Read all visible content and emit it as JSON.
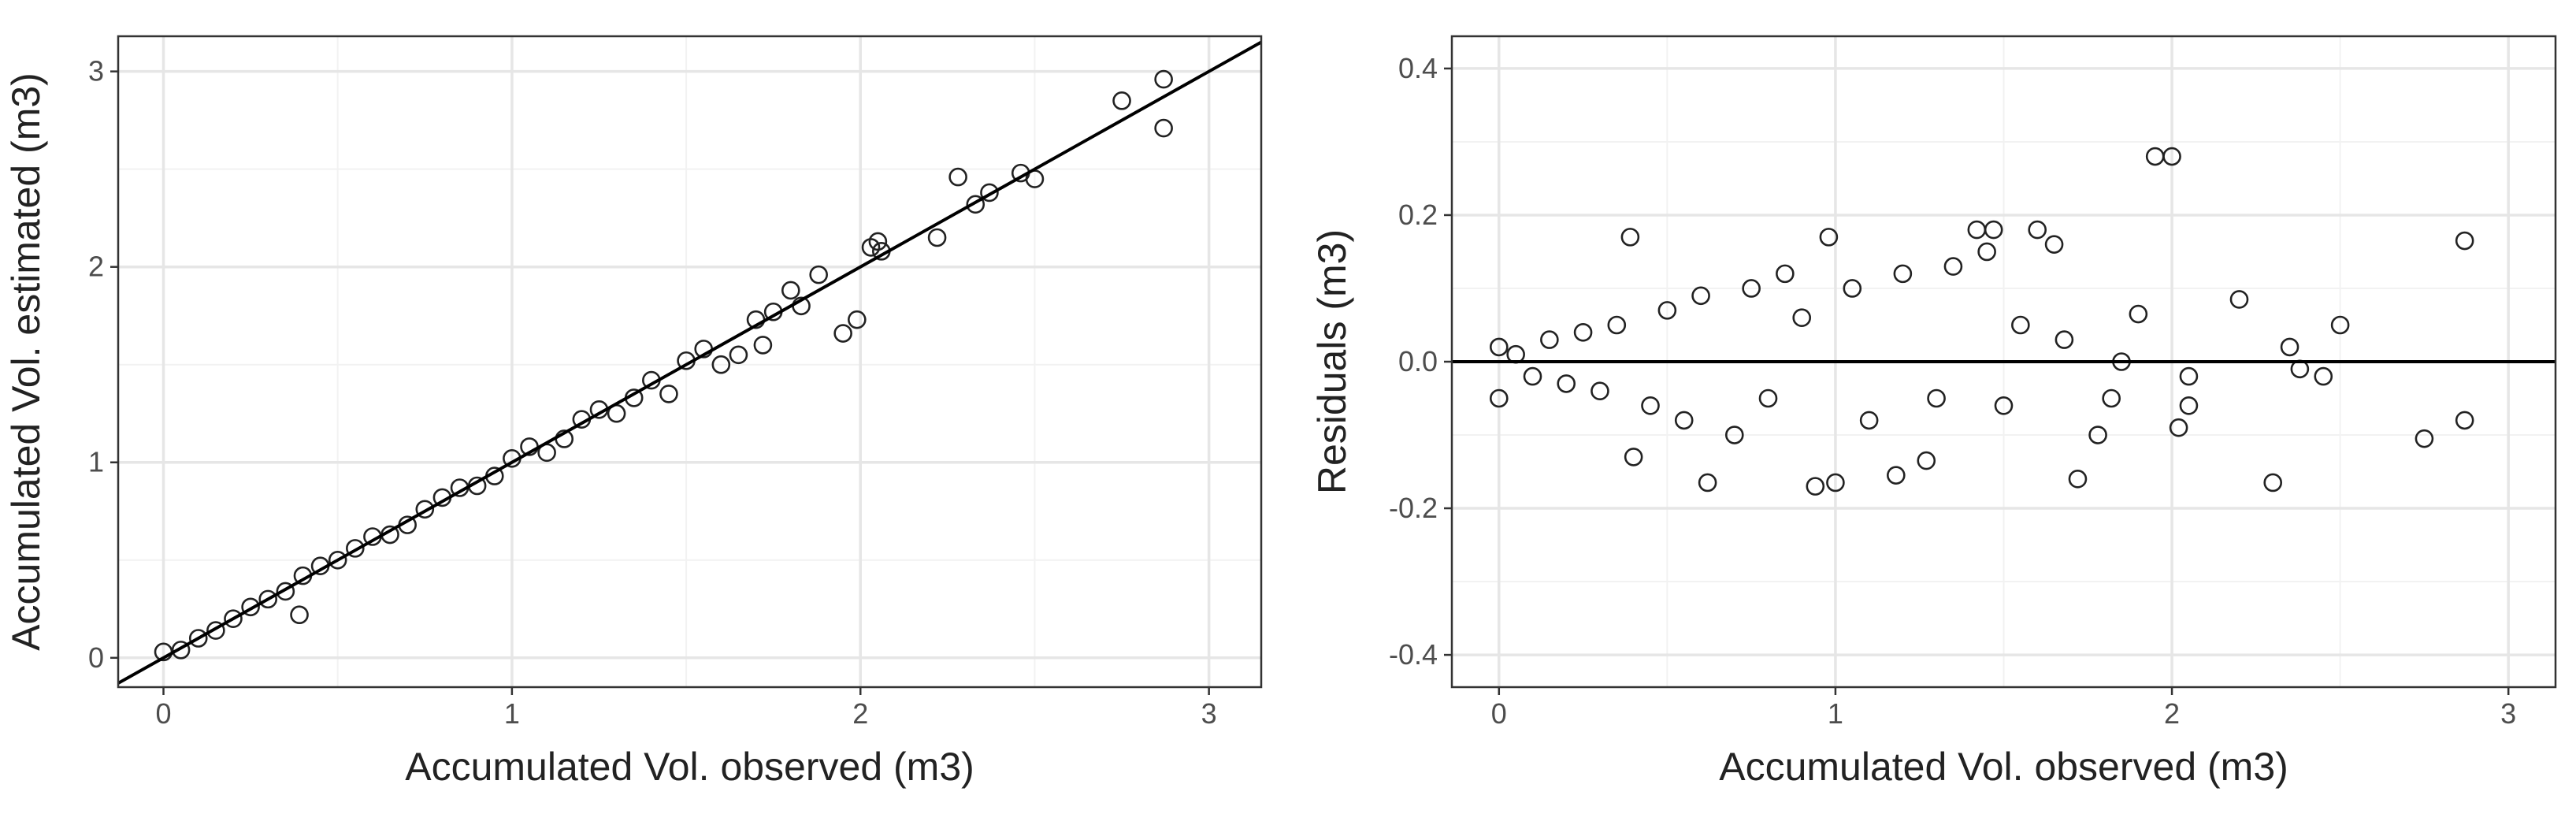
{
  "chart_data": [
    {
      "type": "scatter",
      "xlabel": "Accumulated Vol. observed (m3)",
      "ylabel": "Accumulated Vol. estimated (m3)",
      "xlim": [
        -0.13,
        3.15
      ],
      "ylim": [
        -0.15,
        3.18
      ],
      "xticks": [
        0,
        1,
        2,
        3
      ],
      "yticks": [
        0,
        1,
        2,
        3
      ],
      "grid": true,
      "minor_grid": true,
      "reference_line": {
        "slope": 1,
        "intercept": 0
      },
      "color": "#222222",
      "x": [
        2.75,
        2.87,
        2.87,
        2.28,
        2.33,
        2.37,
        2.46,
        2.5,
        2.22,
        2.03,
        2.05,
        2.06,
        1.95,
        1.99,
        1.88,
        1.8,
        1.72,
        1.65,
        1.6,
        1.5,
        1.45,
        1.4,
        1.3,
        1.2,
        1.1,
        1.0,
        0.9,
        0.8,
        0.7,
        0.6,
        0.5,
        0.4,
        0.39,
        0.3,
        0.2,
        0.1,
        0.0,
        0.05,
        0.15,
        0.25,
        0.35,
        0.45,
        0.55,
        0.65,
        0.75,
        0.85,
        0.95,
        1.05,
        1.15,
        1.25,
        1.35,
        1.55,
        1.7,
        1.83,
        1.75
      ],
      "y": [
        2.85,
        2.96,
        2.71,
        2.46,
        2.32,
        2.38,
        2.48,
        2.45,
        2.15,
        2.1,
        2.13,
        2.08,
        1.66,
        1.73,
        1.96,
        1.88,
        1.6,
        1.55,
        1.5,
        1.52,
        1.35,
        1.42,
        1.25,
        1.22,
        1.05,
        1.02,
        0.88,
        0.82,
        0.68,
        0.62,
        0.5,
        0.42,
        0.22,
        0.3,
        0.2,
        0.1,
        0.03,
        0.04,
        0.14,
        0.26,
        0.34,
        0.47,
        0.56,
        0.63,
        0.76,
        0.87,
        0.93,
        1.08,
        1.12,
        1.27,
        1.33,
        1.58,
        1.73,
        1.8,
        1.77
      ]
    },
    {
      "type": "scatter",
      "xlabel": "Accumulated Vol. observed (m3)",
      "ylabel": "Residuals (m3)",
      "xlim": [
        -0.14,
        3.14
      ],
      "ylim": [
        -0.444,
        0.444
      ],
      "xticks": [
        0,
        1,
        2,
        3
      ],
      "yticks": [
        {
          "value": -0.4,
          "label": "-0.4"
        },
        {
          "value": -0.2,
          "label": "-0.2"
        },
        {
          "value": 0,
          "label": "0.0"
        },
        {
          "value": 0.2,
          "label": "0.2"
        },
        {
          "value": 0.4,
          "label": "0.4"
        }
      ],
      "grid": true,
      "minor_grid": true,
      "reference_line": {
        "slope": 0,
        "intercept": 0
      },
      "color": "#222222",
      "x": [
        1.95,
        2.0,
        2.87,
        2.2,
        2.35,
        2.38,
        2.45,
        2.5,
        2.75,
        2.87,
        2.3,
        2.02,
        2.05,
        2.05,
        1.6,
        1.65,
        1.42,
        1.47,
        1.45,
        1.72,
        1.78,
        1.9,
        0.39,
        0.98,
        1.0,
        0.94,
        1.18,
        0.62,
        0.4,
        1.27,
        0,
        0,
        0.05,
        0.1,
        0.15,
        0.2,
        0.25,
        0.3,
        0.35,
        0.45,
        0.5,
        0.55,
        0.6,
        0.7,
        0.75,
        0.8,
        0.85,
        0.9,
        1.05,
        1.1,
        1.2,
        1.3,
        1.35,
        1.5,
        1.55,
        1.68,
        1.82,
        1.85
      ],
      "y": [
        0.28,
        0.28,
        0.165,
        0.085,
        0.02,
        -0.01,
        -0.02,
        0.05,
        -0.105,
        -0.08,
        -0.165,
        -0.09,
        -0.06,
        -0.02,
        0.18,
        0.16,
        0.18,
        0.18,
        0.15,
        -0.16,
        -0.1,
        0.065,
        0.17,
        0.17,
        -0.165,
        -0.17,
        -0.155,
        -0.165,
        -0.13,
        -0.135,
        0.02,
        -0.05,
        0.01,
        -0.02,
        0.03,
        -0.03,
        0.04,
        -0.04,
        0.05,
        -0.06,
        0.07,
        -0.08,
        0.09,
        -0.1,
        0.1,
        -0.05,
        0.12,
        0.06,
        0.1,
        -0.08,
        0.12,
        -0.05,
        0.13,
        -0.06,
        0.05,
        0.03,
        -0.05,
        0.0
      ]
    }
  ]
}
